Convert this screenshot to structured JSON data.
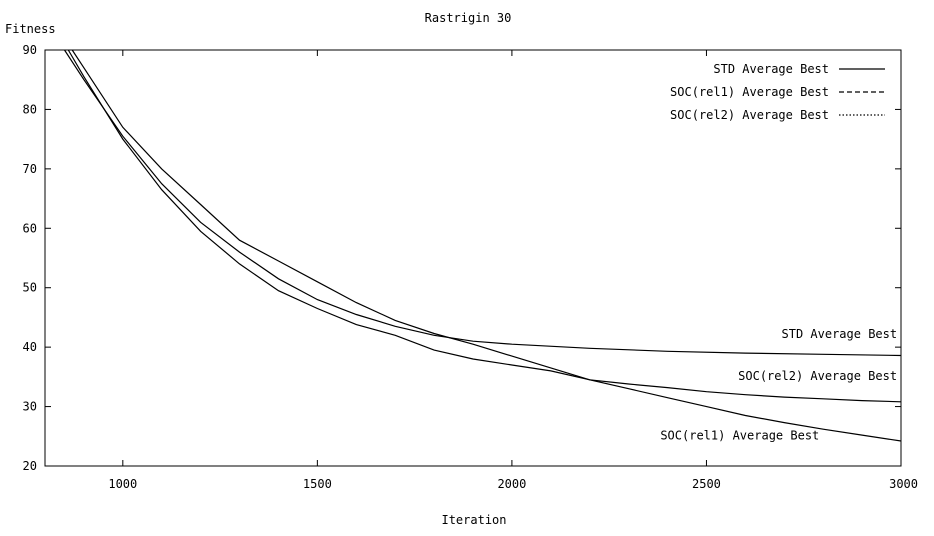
{
  "chart_data": {
    "type": "line",
    "title": "Rastrigin 30",
    "xlabel": "Iteration",
    "ylabel": "Fitness",
    "xlim": [
      800,
      3000
    ],
    "ylim": [
      20,
      90
    ],
    "xticks": [
      1000,
      1500,
      2000,
      2500,
      3000
    ],
    "yticks": [
      20,
      30,
      40,
      50,
      60,
      70,
      80,
      90
    ],
    "grid": false,
    "legend_position": "top-right",
    "series": [
      {
        "name": "STD Average Best",
        "legend_line": "solid",
        "x": [
          850,
          900,
          1000,
          1100,
          1200,
          1300,
          1400,
          1500,
          1600,
          1700,
          1800,
          1900,
          2000,
          2200,
          2400,
          2600,
          2800,
          3000
        ],
        "y": [
          90,
          85,
          75.5,
          67.5,
          61,
          56,
          51.5,
          48,
          45.5,
          43.5,
          42,
          41,
          40.5,
          39.8,
          39.3,
          39,
          38.8,
          38.6
        ]
      },
      {
        "name": "SOC(rel1) Average Best",
        "legend_line": "dashed",
        "x": [
          870,
          900,
          1000,
          1100,
          1200,
          1300,
          1400,
          1500,
          1600,
          1700,
          1800,
          1900,
          2000,
          2100,
          2200,
          2300,
          2400,
          2500,
          2600,
          2700,
          2800,
          2900,
          3000
        ],
        "y": [
          90,
          87,
          77,
          70,
          64,
          58,
          54.5,
          51,
          47.5,
          44.5,
          42.3,
          40.5,
          38.5,
          36.5,
          34.5,
          33,
          31.5,
          30,
          28.5,
          27.3,
          26.2,
          25.2,
          24.2
        ]
      },
      {
        "name": "SOC(rel2) Average Best",
        "legend_line": "dotted",
        "x": [
          860,
          900,
          1000,
          1100,
          1200,
          1300,
          1400,
          1500,
          1600,
          1700,
          1800,
          1900,
          2000,
          2100,
          2200,
          2300,
          2400,
          2500,
          2600,
          2700,
          2800,
          2900,
          3000
        ],
        "y": [
          90,
          85.5,
          75,
          66.5,
          59.5,
          54,
          49.5,
          46.5,
          43.8,
          42,
          39.5,
          38,
          37,
          36,
          34.5,
          33.8,
          33.2,
          32.5,
          32,
          31.6,
          31.3,
          31,
          30.8
        ]
      }
    ],
    "annotations": [
      {
        "text": "STD Average Best",
        "x": 2990,
        "y": 41.5
      },
      {
        "text": "SOC(rel2) Average Best",
        "x": 2990,
        "y": 34.5
      },
      {
        "text": "SOC(rel1) Average Best",
        "x": 2790,
        "y": 24.5
      }
    ]
  }
}
